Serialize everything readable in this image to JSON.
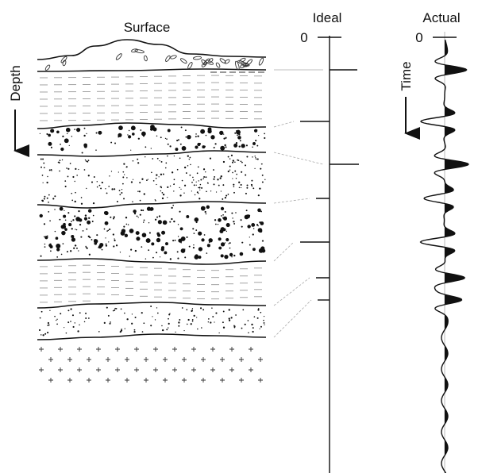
{
  "labels": {
    "surface": "Surface",
    "depth": "Depth",
    "ideal": "Ideal",
    "ideal_zero": "0",
    "actual": "Actual",
    "actual_zero": "0",
    "time": "Time"
  }
}
